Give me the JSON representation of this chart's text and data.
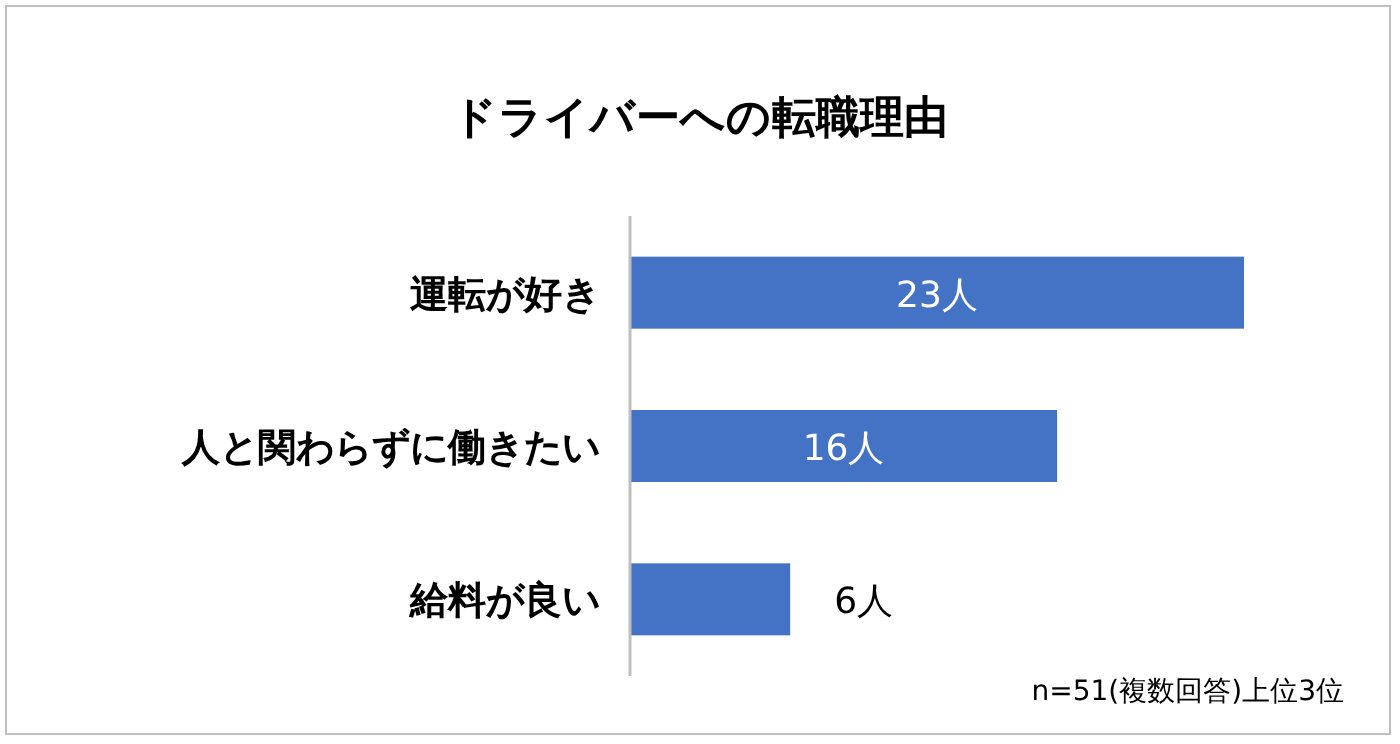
{
  "chart_data": {
    "type": "bar",
    "orientation": "horizontal",
    "title": "ドライバーへの転職理由",
    "categories": [
      "運転が好き",
      "人と関わらずに働きたい",
      "給料が良い"
    ],
    "values": [
      23,
      16,
      6
    ],
    "value_labels": [
      "23人",
      "16人",
      "6人"
    ],
    "color": "#4472c4",
    "annotations": [
      "n=51(複数回答)上位3位"
    ]
  }
}
